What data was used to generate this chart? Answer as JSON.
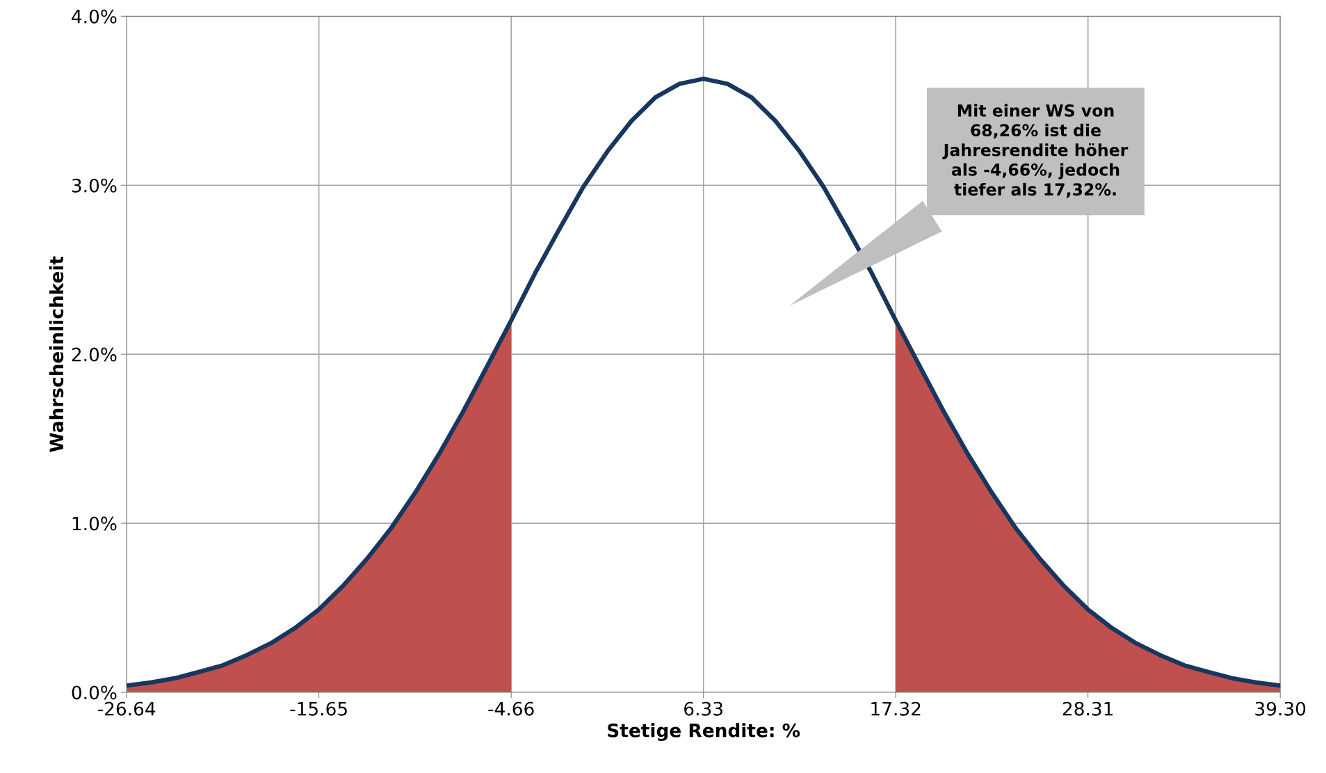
{
  "chart_data": {
    "type": "line",
    "xlabel": "Stetige Rendite: %",
    "ylabel": "Wahrscheinlichkeit",
    "xlim": [
      -26.64,
      39.3
    ],
    "xticks": [
      {
        "value": -26.64,
        "label": "-26.64"
      },
      {
        "value": -15.65,
        "label": "-15.65"
      },
      {
        "value": -4.66,
        "label": "-4.66"
      },
      {
        "value": 6.33,
        "label": "6.33"
      },
      {
        "value": 17.32,
        "label": "17.32"
      },
      {
        "value": 28.31,
        "label": "28.31"
      },
      {
        "value": 39.3,
        "label": "39.30"
      }
    ],
    "ylim": [
      0,
      4
    ],
    "yticks": [
      {
        "value": 0,
        "label": "0.0%"
      },
      {
        "value": 1,
        "label": "1.0%"
      },
      {
        "value": 2,
        "label": "2.0%"
      },
      {
        "value": 3,
        "label": "3.0%"
      },
      {
        "value": 4,
        "label": "4.0%"
      }
    ],
    "grid": true,
    "legend": false,
    "marker": "none",
    "line_style": "solid",
    "series": [
      {
        "type": "area",
        "color": "#c0504d",
        "x": [
          -26.64,
          -25.26,
          -23.89,
          -22.52,
          -21.14,
          -19.77,
          -18.4,
          -17.02,
          -15.65,
          -14.27,
          -12.9,
          -11.53,
          -10.15,
          -8.78,
          -7.41,
          -6.03,
          -4.66
        ],
        "values": [
          0.04,
          0.058,
          0.083,
          0.12,
          0.16,
          0.22,
          0.29,
          0.38,
          0.49,
          0.63,
          0.79,
          0.97,
          1.18,
          1.41,
          1.66,
          1.93,
          2.2
        ]
      },
      {
        "type": "area",
        "color": "#c0504d",
        "x": [
          17.32,
          18.69,
          20.07,
          21.44,
          22.82,
          24.19,
          25.56,
          26.93,
          28.31,
          29.68,
          31.06,
          32.43,
          33.81,
          35.18,
          36.55,
          37.92,
          39.3
        ],
        "values": [
          2.2,
          1.93,
          1.66,
          1.41,
          1.18,
          0.97,
          0.79,
          0.63,
          0.49,
          0.38,
          0.29,
          0.22,
          0.16,
          0.12,
          0.083,
          0.058,
          0.04
        ]
      },
      {
        "color": "#17375e",
        "x": [
          -26.64,
          -25.26,
          -23.89,
          -22.52,
          -21.14,
          -19.77,
          -18.4,
          -17.02,
          -15.65,
          -14.27,
          -12.9,
          -11.53,
          -10.15,
          -8.78,
          -7.41,
          -6.03,
          -4.66,
          -3.29,
          -1.91,
          -0.54,
          0.84,
          2.21,
          3.58,
          4.96,
          6.33,
          7.7,
          9.08,
          10.45,
          11.83,
          13.2,
          14.57,
          15.95,
          17.32,
          18.69,
          20.07,
          21.44,
          22.82,
          24.19,
          25.56,
          26.93,
          28.31,
          29.68,
          31.06,
          32.43,
          33.81,
          35.18,
          36.55,
          37.92,
          39.3
        ],
        "values": [
          0.04,
          0.058,
          0.083,
          0.12,
          0.16,
          0.22,
          0.29,
          0.38,
          0.49,
          0.63,
          0.79,
          0.97,
          1.18,
          1.41,
          1.66,
          1.93,
          2.2,
          2.48,
          2.74,
          2.99,
          3.2,
          3.38,
          3.52,
          3.6,
          3.63,
          3.6,
          3.52,
          3.38,
          3.2,
          2.99,
          2.74,
          2.48,
          2.2,
          1.93,
          1.66,
          1.41,
          1.18,
          0.97,
          0.79,
          0.63,
          0.49,
          0.38,
          0.29,
          0.22,
          0.16,
          0.12,
          0.083,
          0.058,
          0.04
        ]
      }
    ],
    "annotations": [
      "Mit einer WS von\n68,26% ist die\nJahresrendite höher\nals -4,66%, jedoch\ntiefer als 17,32%."
    ]
  }
}
